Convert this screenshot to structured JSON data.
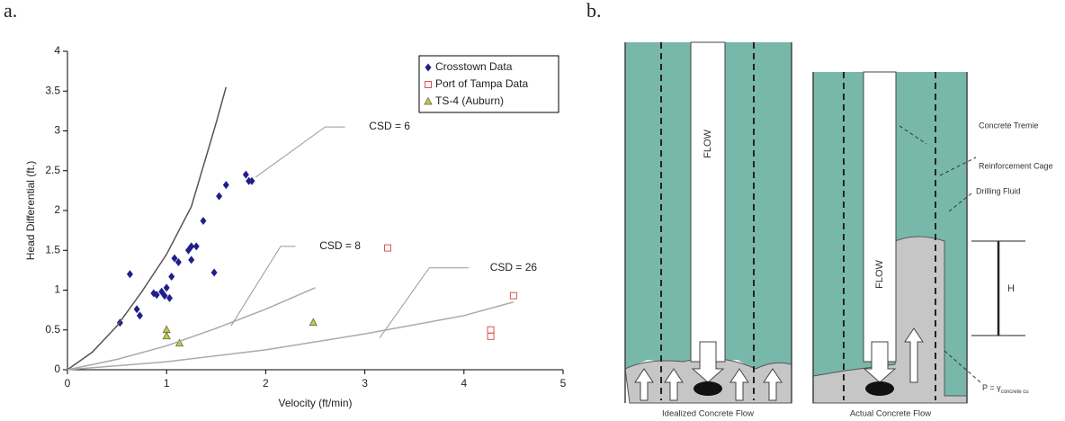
{
  "panel_labels": [
    "a.",
    "b."
  ],
  "chart_data": {
    "type": "scatter",
    "x_label": "Velocity (ft/min)",
    "y_label": "Head Differential (ft.)",
    "xlim": [
      0,
      5
    ],
    "ylim": [
      0,
      4
    ],
    "xticks": [
      0,
      1,
      2,
      3,
      4,
      5
    ],
    "yticks": [
      0,
      0.5,
      1,
      1.5,
      2,
      2.5,
      3,
      3.5,
      4
    ],
    "legend": "top-right",
    "series": [
      {
        "name": "Crosstown Data",
        "color": "#1f1f8a",
        "marker": "diamond",
        "x": [
          0.53,
          0.63,
          0.7,
          0.73,
          0.87,
          0.9,
          0.95,
          0.98,
          1.0,
          1.03,
          1.05,
          1.08,
          1.12,
          1.25,
          1.22,
          1.25,
          1.3,
          1.37,
          1.48,
          1.53,
          1.6,
          1.8,
          1.83,
          1.86
        ],
        "values": [
          0.59,
          1.2,
          0.76,
          0.68,
          0.96,
          0.94,
          0.98,
          0.93,
          1.03,
          0.9,
          1.17,
          1.4,
          1.35,
          1.38,
          1.5,
          1.55,
          1.55,
          1.87,
          1.22,
          2.18,
          2.32,
          2.45,
          2.37,
          2.37
        ]
      },
      {
        "name": "Port of Tampa Data",
        "color": "#e05050",
        "marker": "square",
        "x": [
          3.23,
          4.5,
          4.27,
          4.27
        ],
        "values": [
          1.53,
          0.93,
          0.5,
          0.42
        ]
      },
      {
        "name": "TS-4 (Auburn)",
        "color": "#c8c83a",
        "marker": "triangle",
        "x": [
          1.0,
          1.0,
          1.13,
          2.48
        ],
        "values": [
          0.5,
          0.42,
          0.33,
          0.59
        ]
      },
      {
        "name": "CSD = 6",
        "color": "#555555",
        "marker": "line",
        "in_legend": false,
        "x": [
          0,
          0.25,
          0.5,
          0.75,
          1,
          1.25,
          1.5,
          1.6
        ],
        "values": [
          0,
          0.22,
          0.55,
          0.98,
          1.45,
          2.05,
          3.1,
          3.55
        ]
      },
      {
        "name": "CSD = 8",
        "color": "#aaaaaa",
        "marker": "line",
        "in_legend": false,
        "x": [
          0,
          0.5,
          1,
          1.5,
          2,
          2.5
        ],
        "values": [
          0,
          0.13,
          0.3,
          0.52,
          0.76,
          1.03
        ]
      },
      {
        "name": "CSD = 26",
        "color": "#aaaaaa",
        "marker": "line",
        "in_legend": false,
        "x": [
          0,
          1,
          2,
          3,
          4,
          4.5
        ],
        "values": [
          0,
          0.1,
          0.25,
          0.45,
          0.68,
          0.85
        ]
      }
    ]
  },
  "diagram": {
    "flow_labels": [
      "FLOW",
      "FLOW"
    ],
    "captions": [
      "Idealized Concrete Flow",
      "Actual Concrete Flow"
    ],
    "callouts": [
      "Concrete Tremie",
      "Reinforcement Cage",
      "Drilling Fluid",
      "H"
    ],
    "pressure": {
      "text": "P = γ",
      "subscript": "concrete cu"
    }
  }
}
